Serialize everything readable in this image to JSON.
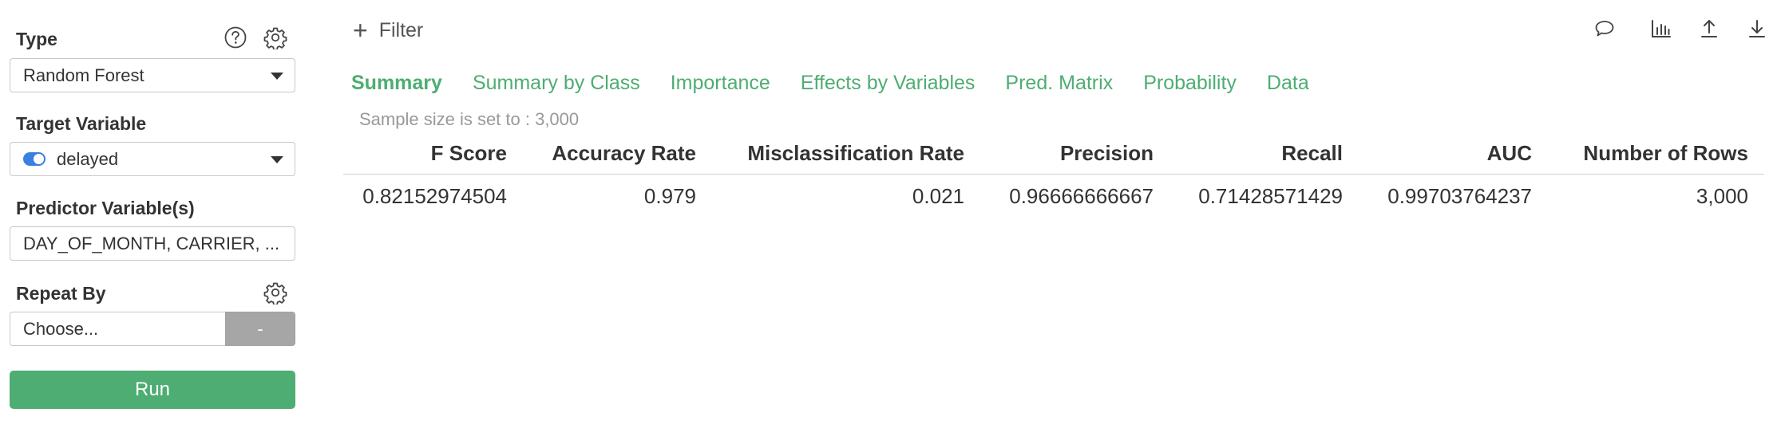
{
  "sidebar": {
    "type_label": "Type",
    "type_value": "Random Forest",
    "target_label": "Target Variable",
    "target_value": "delayed",
    "predictor_label": "Predictor Variable(s)",
    "predictor_value": "DAY_OF_MONTH, CARRIER, ...",
    "repeat_label": "Repeat By",
    "repeat_placeholder": "Choose...",
    "repeat_button": "-",
    "run_label": "Run"
  },
  "main": {
    "filter_label": "Filter",
    "tabs": [
      {
        "label": "Summary",
        "active": true
      },
      {
        "label": "Summary by Class",
        "active": false
      },
      {
        "label": "Importance",
        "active": false
      },
      {
        "label": "Effects by Variables",
        "active": false
      },
      {
        "label": "Pred. Matrix",
        "active": false
      },
      {
        "label": "Probability",
        "active": false
      },
      {
        "label": "Data",
        "active": false
      }
    ],
    "sample_note": "Sample size is set to : 3,000",
    "table": {
      "headers": [
        "F Score",
        "Accuracy Rate",
        "Misclassification Rate",
        "Precision",
        "Recall",
        "AUC",
        "Number of Rows"
      ],
      "rows": [
        [
          "0.82152974504",
          "0.979",
          "0.021",
          "0.96666666667",
          "0.71428571429",
          "0.99703764237",
          "3,000"
        ]
      ]
    }
  },
  "icons": {
    "help": "help-icon",
    "settings": "gear-icon",
    "comment": "comment-icon",
    "chart": "chart-icon",
    "upload": "upload-icon",
    "download": "download-icon"
  },
  "colors": {
    "accent": "#4ead72",
    "toggle": "#3b7fe0",
    "disabled_button": "#a6a6a6"
  }
}
